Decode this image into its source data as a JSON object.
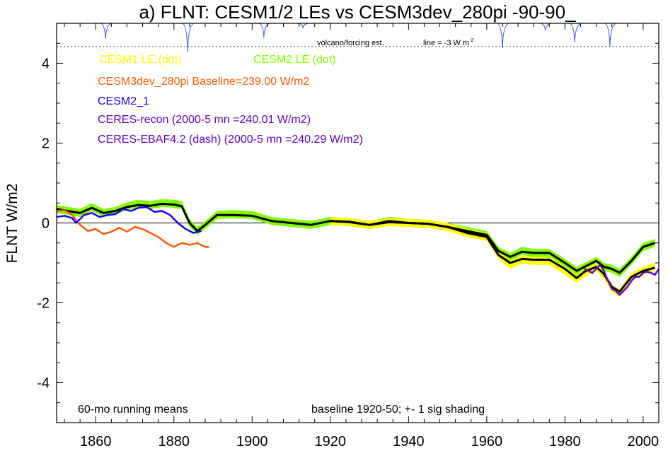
{
  "chart_data": {
    "type": "line",
    "title": "a) FLNT: CESM1/2 LEs vs CESM3dev_280pi -90-90_",
    "ylabel": "FLNT W/m2",
    "xlabel": "",
    "xlim": [
      1850,
      2004
    ],
    "ylim": [
      -5,
      5
    ],
    "x_ticks": [
      1860,
      1880,
      1900,
      1920,
      1940,
      1960,
      1980,
      2000
    ],
    "y_ticks": [
      -4,
      -2,
      0,
      2,
      4
    ],
    "zero_line": true,
    "volcano_note": "volcano/forcing est.",
    "volcano_scale": "line = -3 W m",
    "volcano_scale_sup": "-2",
    "volcano_reference_level": 4.42,
    "volcano_baseline": 5.0,
    "volcano_dips": [
      [
        1862.5,
        4.62
      ],
      [
        1883.5,
        4.28
      ],
      [
        1903,
        4.65
      ],
      [
        1913,
        4.88
      ],
      [
        1964,
        4.38
      ],
      [
        1975,
        4.82
      ],
      [
        1982.5,
        4.52
      ],
      [
        1991.5,
        4.42
      ]
    ],
    "note_left": "60-mo running means",
    "note_right": "baseline 1920-50; +- 1 sig shading",
    "legend": [
      {
        "label": "CESM1 LE (dot)",
        "color": "#ffff00"
      },
      {
        "label": "CESM2 LE (dot)",
        "color": "#80ff00"
      },
      {
        "label": "CESM3dev_280pi Baseline=239.00 W/m2",
        "color": "#ff5a00"
      },
      {
        "label": "CESM2_1",
        "color": "#1a00ff"
      },
      {
        "label": "CERES-recon (2000-5 mn =240.01 W/m2)",
        "color": "#6600cc"
      },
      {
        "label": "CERES-EBAF4.2 (dash) (2000-5 mn =240.29 W/m2)",
        "color": "#6600cc"
      }
    ],
    "series": [
      {
        "name": "CESM1 LE (dot)",
        "color": "#ffff00",
        "sigma": 0.1,
        "x": [
          1920,
          1925,
          1930,
          1935,
          1940,
          1945,
          1950,
          1955,
          1960,
          1963,
          1966,
          1969,
          1972,
          1976,
          1980,
          1983,
          1985,
          1988,
          1990,
          1992,
          1994,
          1997,
          2000,
          2003
        ],
        "y": [
          0.05,
          0.03,
          -0.05,
          0.02,
          0.0,
          -0.02,
          -0.1,
          -0.25,
          -0.35,
          -0.8,
          -1.05,
          -0.92,
          -0.95,
          -0.95,
          -1.2,
          -1.4,
          -1.25,
          -1.1,
          -1.3,
          -1.65,
          -1.75,
          -1.35,
          -1.2,
          -1.1
        ]
      },
      {
        "name": "CESM2 LE (dot)",
        "color": "#80ff00",
        "sigma": 0.1,
        "x": [
          1850,
          1853,
          1856,
          1859,
          1862,
          1865,
          1868,
          1871,
          1874,
          1877,
          1880,
          1882,
          1884,
          1886,
          1888,
          1891,
          1895,
          1900,
          1905,
          1910,
          1915,
          1920,
          1925,
          1930,
          1935,
          1940,
          1945,
          1950,
          1955,
          1960,
          1963,
          1966,
          1969,
          1972,
          1976,
          1980,
          1983,
          1985,
          1988,
          1990,
          1992,
          1994,
          1997,
          2000,
          2003
        ],
        "y": [
          0.35,
          0.3,
          0.25,
          0.4,
          0.25,
          0.3,
          0.42,
          0.48,
          0.45,
          0.5,
          0.48,
          0.45,
          0.0,
          -0.2,
          -0.05,
          0.2,
          0.22,
          0.2,
          0.05,
          0.0,
          -0.05,
          0.05,
          0.02,
          -0.05,
          0.05,
          0.0,
          -0.02,
          -0.1,
          -0.2,
          -0.3,
          -0.7,
          -0.85,
          -0.7,
          -0.75,
          -0.75,
          -1.0,
          -1.2,
          -1.1,
          -0.95,
          -1.1,
          -1.15,
          -1.25,
          -0.95,
          -0.6,
          -0.5
        ]
      },
      {
        "name": "CESM1 LE ensemble mean",
        "color": "#000000",
        "x": [
          1920,
          1925,
          1930,
          1935,
          1940,
          1945,
          1950,
          1955,
          1960,
          1963,
          1966,
          1969,
          1972,
          1976,
          1980,
          1983,
          1985,
          1988,
          1990,
          1992,
          1994,
          1997,
          2000,
          2003
        ],
        "y": [
          0.05,
          0.03,
          -0.05,
          0.02,
          0.0,
          -0.02,
          -0.1,
          -0.25,
          -0.35,
          -0.8,
          -1.0,
          -0.9,
          -0.92,
          -0.92,
          -1.15,
          -1.38,
          -1.22,
          -1.1,
          -1.28,
          -1.6,
          -1.72,
          -1.35,
          -1.2,
          -1.12
        ]
      },
      {
        "name": "CESM2 LE ensemble mean",
        "color": "#000000",
        "x": [
          1850,
          1853,
          1856,
          1859,
          1862,
          1865,
          1868,
          1871,
          1874,
          1877,
          1880,
          1882,
          1884,
          1886,
          1888,
          1891,
          1895,
          1900,
          1905,
          1910,
          1915,
          1920,
          1925,
          1930,
          1935,
          1940,
          1945,
          1950,
          1955,
          1960,
          1963,
          1966,
          1969,
          1972,
          1976,
          1980,
          1983,
          1985,
          1988,
          1990,
          1992,
          1994,
          1997,
          2000,
          2003
        ],
        "y": [
          0.35,
          0.3,
          0.25,
          0.38,
          0.25,
          0.3,
          0.4,
          0.45,
          0.43,
          0.48,
          0.46,
          0.42,
          0.0,
          -0.2,
          -0.05,
          0.2,
          0.2,
          0.18,
          0.05,
          0.0,
          -0.05,
          0.05,
          0.02,
          -0.05,
          0.05,
          0.0,
          -0.02,
          -0.1,
          -0.2,
          -0.3,
          -0.7,
          -0.85,
          -0.72,
          -0.75,
          -0.75,
          -1.0,
          -1.2,
          -1.1,
          -0.95,
          -1.1,
          -1.15,
          -1.25,
          -0.95,
          -0.6,
          -0.5
        ]
      },
      {
        "name": "CESM3dev_280pi Baseline=239.00 W/m2",
        "color": "#ff5a00",
        "x": [
          1850,
          1852,
          1854,
          1856,
          1858,
          1860,
          1862,
          1864,
          1866,
          1868,
          1870,
          1872,
          1874,
          1876,
          1878,
          1880,
          1882,
          1884,
          1886,
          1888,
          1889
        ],
        "y": [
          0.3,
          0.32,
          0.2,
          -0.05,
          -0.2,
          -0.15,
          -0.28,
          -0.22,
          -0.12,
          -0.22,
          -0.1,
          -0.15,
          -0.25,
          -0.35,
          -0.5,
          -0.6,
          -0.5,
          -0.55,
          -0.5,
          -0.6,
          -0.6
        ]
      },
      {
        "name": "CESM2_1",
        "color": "#1a00ff",
        "x": [
          1850,
          1852,
          1854,
          1855,
          1857,
          1859,
          1861,
          1863,
          1865,
          1867,
          1869,
          1871,
          1873,
          1875,
          1877,
          1879,
          1881,
          1883,
          1885,
          1887
        ],
        "y": [
          0.15,
          0.18,
          0.12,
          0.0,
          0.2,
          0.25,
          0.15,
          0.2,
          0.22,
          0.35,
          0.3,
          0.38,
          0.4,
          0.28,
          0.3,
          0.2,
          0.0,
          -0.15,
          -0.25,
          -0.2
        ]
      },
      {
        "name": "CERES-recon (2000-5 mn =240.01 W/m2)",
        "color": "#6600cc",
        "x": [
          1985,
          1987,
          1989,
          1990,
          1991,
          1992,
          1993,
          1994,
          1995,
          1996,
          1997,
          1998,
          1999,
          2000,
          2001,
          2002,
          2003,
          2004
        ],
        "y": [
          -1.15,
          -1.25,
          -1.05,
          -1.2,
          -1.45,
          -1.65,
          -1.7,
          -1.8,
          -1.7,
          -1.6,
          -1.45,
          -1.35,
          -1.35,
          -1.25,
          -1.22,
          -1.25,
          -1.3,
          -1.15
        ]
      }
    ]
  }
}
